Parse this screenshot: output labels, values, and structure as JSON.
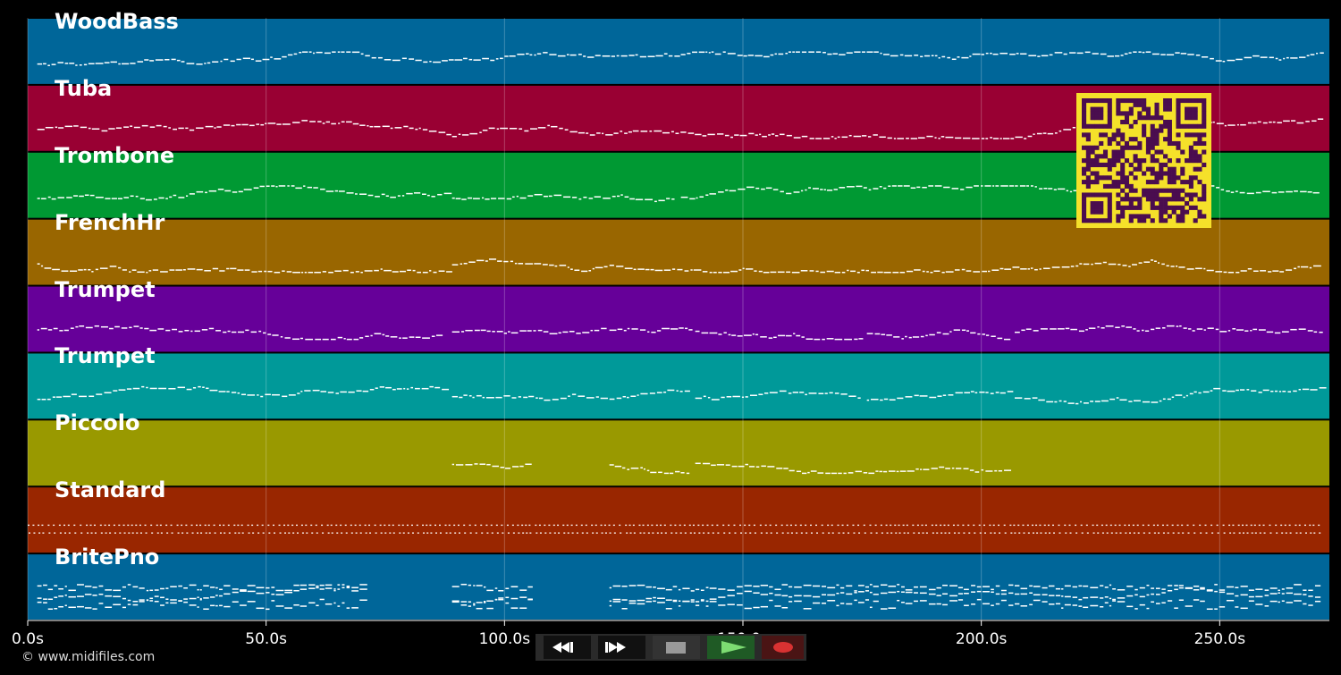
{
  "chart_data": {
    "type": "piano-roll",
    "x_axis": {
      "unit": "s",
      "range": [
        0,
        273
      ],
      "ticks": [
        "0.0s",
        "50.0s",
        "100.0s",
        "150.0s",
        "200.0s",
        "250.0s"
      ]
    },
    "tracks": [
      {
        "name": "WoodBass",
        "color": "#006699",
        "segments": [
          [
            2,
            271
          ]
        ]
      },
      {
        "name": "Tuba",
        "color": "#990033",
        "segments": [
          [
            2,
            271
          ]
        ]
      },
      {
        "name": "Trombone",
        "color": "#009933",
        "segments": [
          [
            2,
            88
          ],
          [
            89,
            136
          ],
          [
            137,
            271
          ]
        ]
      },
      {
        "name": "FrenchHr",
        "color": "#996600",
        "segments": [
          [
            2,
            88
          ],
          [
            89,
            121
          ],
          [
            122,
            271
          ]
        ]
      },
      {
        "name": "Trumpet",
        "color": "#660099",
        "segments": [
          [
            2,
            87
          ],
          [
            89,
            121
          ],
          [
            122,
            139
          ],
          [
            140,
            175
          ],
          [
            176,
            206
          ],
          [
            207,
            271
          ]
        ]
      },
      {
        "name": "Trumpet",
        "color": "#009999",
        "segments": [
          [
            2,
            87
          ],
          [
            89,
            121
          ],
          [
            122,
            139
          ],
          [
            140,
            175
          ],
          [
            176,
            206
          ],
          [
            207,
            271
          ]
        ]
      },
      {
        "name": "Piccolo",
        "color": "#999900",
        "segments": [
          [
            89,
            105
          ],
          [
            122,
            139
          ],
          [
            140,
            206
          ]
        ]
      },
      {
        "name": "Standard",
        "color": "#992600",
        "segments": [
          [
            0,
            271
          ]
        ]
      },
      {
        "name": "BritePno",
        "color": "#006699",
        "segments": [
          [
            2,
            71
          ],
          [
            89,
            105
          ],
          [
            122,
            271
          ]
        ]
      }
    ]
  },
  "footer": {
    "copyright": "© www.midifiles.com"
  },
  "controls": {
    "rewind": "rewind-icon",
    "fast_forward": "fast-forward-icon",
    "stop": "stop-icon",
    "play": "play-icon",
    "record": "record-icon"
  },
  "colors": {
    "background": "#000000",
    "qr_background": "#f5e12a",
    "qr_foreground": "#4a0d4f",
    "note": "#ffffff"
  }
}
